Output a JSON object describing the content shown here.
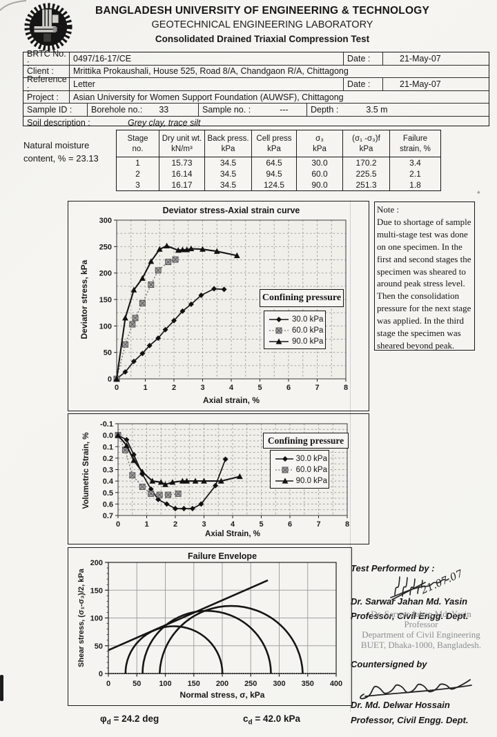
{
  "header": {
    "university": "BANGLADESH UNIVERSITY OF ENGINEERING & TECHNOLOGY",
    "lab": "GEOTECHNICAL ENGINEERING LABORATORY",
    "test": "Consolidated Drained Triaxial Compression Test"
  },
  "info": {
    "brtc_label": "BRTC No. :",
    "brtc_value": "0497/16-17/CE",
    "date1_label": "Date :",
    "date1_value": "21-May-07",
    "client_label": "Client :",
    "client_value": "Mrittika Prokaushali, House 525, Road 8/A, Chandgaon R/A, Chittagong",
    "reference_label": "Reference :",
    "reference_value": "Letter",
    "date2_label": "Date :",
    "date2_value": "21-May-07",
    "project_label": "Project :",
    "project_value": "Asian University for Women Support Foundation (AUWSF), Chittagong",
    "sample_label": "Sample ID :",
    "borehole_label": "Borehole no.:",
    "borehole_value": "33",
    "sampleno_label": "Sample no. :",
    "sampleno_value": "---",
    "depth_label": "Depth :",
    "depth_value": "3.5 m",
    "soil_label": "Soil description :",
    "soil_value": "Grey clay, trace silt"
  },
  "moisture": {
    "line1": "Natural moisture",
    "line2": "content, % =  23.13"
  },
  "stage_table": {
    "headers_line1": [
      "Stage",
      "Dry unit wt.",
      "Back press.",
      "Cell press",
      "σ₃",
      "(σ₁ -σ₃)f",
      "Failure"
    ],
    "headers_line2": [
      "no.",
      "kN/m³",
      "kPa",
      "kPa",
      "kPa",
      "kPa",
      "strain, %"
    ],
    "rows": [
      [
        "1",
        "15.73",
        "34.5",
        "64.5",
        "30.0",
        "170.2",
        "3.4"
      ],
      [
        "2",
        "16.14",
        "34.5",
        "94.5",
        "60.0",
        "225.5",
        "2.1"
      ],
      [
        "3",
        "16.17",
        "34.5",
        "124.5",
        "90.0",
        "251.3",
        "1.8"
      ]
    ]
  },
  "note": {
    "title": "Note :",
    "body": "Due to shortage of sample\nmulti-stage test was done\non one specimen. In the\nfirst and second stages the\nspecimen was sheared to\naround peak stress level.\nThen the consolidation\npressure for the next stage\nwas applied. In the third\nstage the specimen was\nsheared beyond peak."
  },
  "results": {
    "phi_sym": "φ",
    "phi_sub": "d",
    "phi_rest": " = 24.2 deg",
    "c_sym": "c",
    "c_sub": "d",
    "c_rest": " = 42.0 kPa"
  },
  "signatures": {
    "performed_label": "Test Performed by :",
    "performed_date": "21.07.07",
    "performer_name": "Dr. Sarwar Jahan Md. Yasin",
    "performer_title": "Professor, Civil Engg. Dept.",
    "stamp_line1": "Dr. Sarwar Jahan Md. Yasin",
    "stamp_line2": "Professor",
    "stamp_line3": "Department of Civil Engineering",
    "stamp_line4": "BUET, Dhaka-1000, Bangladesh.",
    "countersigned_label": "Countersigned by",
    "countersigner_name": "Dr. Md. Delwar Hossain",
    "countersigner_title": "Professor, Civil Engg. Dept."
  },
  "artifacts": {
    "asterisk": "*"
  },
  "chart_data": [
    {
      "type": "line",
      "title": "Deviator stress-Axial strain curve",
      "xlabel": "Axial strain, %",
      "ylabel": "Deviator stress, kPa",
      "xlim": [
        0,
        8
      ],
      "ylim": [
        0,
        300
      ],
      "xticks": [
        0,
        1,
        2,
        3,
        4,
        5,
        6,
        7,
        8
      ],
      "yticks": [
        0,
        50,
        100,
        150,
        200,
        250,
        300
      ],
      "xgrid_step": 0.5,
      "ygrid_step": 25,
      "xtick_decimals": 0,
      "ytick_decimals": 0,
      "grid": "dashed",
      "legend_title": "Confining pressure",
      "legend_position": "right-middle",
      "series": [
        {
          "name": "30.0 kPa",
          "marker": "diamond",
          "line": "solid",
          "x": [
            0,
            0.3,
            0.6,
            0.9,
            1.15,
            1.45,
            1.7,
            2.0,
            2.3,
            2.6,
            2.95,
            3.4,
            3.75
          ],
          "y": [
            0,
            13,
            33,
            48,
            63,
            77,
            93,
            110,
            128,
            141,
            158,
            170.2,
            169
          ]
        },
        {
          "name": "60.0 kPa",
          "marker": "xsquare",
          "line": "dotted",
          "x": [
            0,
            0.3,
            0.55,
            0.65,
            0.9,
            1.2,
            1.45,
            1.8,
            2.05
          ],
          "y": [
            0,
            65,
            103,
            115,
            143,
            178,
            205,
            221,
            225.5
          ]
        },
        {
          "name": "90.0 kPa",
          "marker": "triangle",
          "line": "solid",
          "x": [
            0,
            0.3,
            0.6,
            0.9,
            1.2,
            1.5,
            1.75,
            2.15,
            2.3,
            2.45,
            2.6,
            3.0,
            3.5,
            4.2
          ],
          "y": [
            0,
            115,
            168,
            190,
            222,
            245,
            251.3,
            243,
            244,
            244,
            246,
            245,
            241,
            233
          ]
        }
      ]
    },
    {
      "type": "line",
      "title": "",
      "xlabel": "Axial Strain, %",
      "ylabel": "Volumetric Strain, %",
      "xlim": [
        0,
        8
      ],
      "ylim": [
        -0.1,
        0.7
      ],
      "y_inverted": true,
      "xticks": [
        0,
        1,
        2,
        3,
        4,
        5,
        6,
        7,
        8
      ],
      "yticks": [
        -0.1,
        0,
        0.1,
        0.2,
        0.3,
        0.4,
        0.5,
        0.6,
        0.7
      ],
      "xgrid_step": 0.5,
      "ygrid_step": 0.05,
      "xtick_decimals": 0,
      "ytick_decimals": 1,
      "grid": "dashed",
      "legend_title": "Confining pressure",
      "legend_position": "right-top",
      "series": [
        {
          "name": "30.0 kPa",
          "marker": "diamond",
          "line": "solid",
          "x": [
            0,
            0.3,
            0.55,
            0.85,
            1.15,
            1.4,
            1.7,
            2.0,
            2.3,
            2.6,
            2.9,
            3.4,
            3.75
          ],
          "y": [
            0,
            0.04,
            0.17,
            0.34,
            0.47,
            0.56,
            0.6,
            0.64,
            0.64,
            0.64,
            0.6,
            0.44,
            0.21
          ]
        },
        {
          "name": "60.0 kPa",
          "marker": "xsquare",
          "line": "dotted",
          "x": [
            0,
            0.25,
            0.5,
            0.85,
            1.15,
            1.45,
            1.75,
            2.1
          ],
          "y": [
            0,
            0.13,
            0.35,
            0.45,
            0.51,
            0.52,
            0.52,
            0.51
          ]
        },
        {
          "name": "90.0 kPa",
          "marker": "triangle",
          "line": "solid",
          "x": [
            0,
            0.3,
            0.55,
            0.85,
            1.2,
            1.5,
            1.65,
            1.9,
            2.25,
            2.4,
            2.7,
            3.0,
            3.6,
            4.25
          ],
          "y": [
            0,
            0.09,
            0.22,
            0.32,
            0.4,
            0.41,
            0.43,
            0.41,
            0.4,
            0.4,
            0.4,
            0.4,
            0.4,
            0.36
          ]
        }
      ]
    },
    {
      "type": "mohr",
      "title": "Failure Envelope",
      "xlabel": "Normal stress, σ, kPa",
      "ylabel": "Shear stress, (σ₁-σ₃)/2, kPa",
      "xlim": [
        0,
        400
      ],
      "ylim": [
        0,
        200
      ],
      "xticks": [
        0,
        50,
        100,
        150,
        200,
        250,
        300,
        350,
        400
      ],
      "yticks": [
        0,
        50,
        100,
        150,
        200
      ],
      "xtick_decimals": 0,
      "ytick_decimals": 0,
      "grid": "solid",
      "circles": [
        {
          "sigma3": 30.0,
          "sigma1": 200.2
        },
        {
          "sigma3": 60.0,
          "sigma1": 285.5
        },
        {
          "sigma3": 90.0,
          "sigma1": 341.3
        }
      ],
      "envelope": {
        "cohesion_kpa": 42.0,
        "phi_deg": 24.2,
        "x_start": 0,
        "x_end": 280
      }
    }
  ]
}
